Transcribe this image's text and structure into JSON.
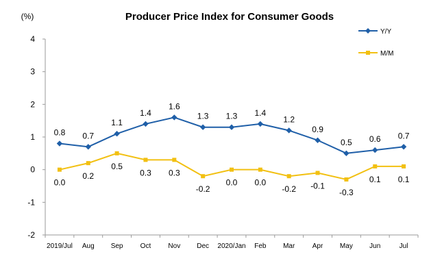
{
  "chart_data": {
    "type": "line",
    "title": "Producer Price Index for Consumer Goods",
    "unit_label": "(%)",
    "xlabel": "",
    "ylabel": "",
    "categories": [
      "2019/Jul",
      "Aug",
      "Sep",
      "Oct",
      "Nov",
      "Dec",
      "2020/Jan",
      "Feb",
      "Mar",
      "Apr",
      "May",
      "Jun",
      "Jul"
    ],
    "series": [
      {
        "name": "Y/Y",
        "color": "#1F5FA8",
        "marker": "diamond",
        "values": [
          0.8,
          0.7,
          1.1,
          1.4,
          1.6,
          1.3,
          1.3,
          1.4,
          1.2,
          0.9,
          0.5,
          0.6,
          0.7
        ]
      },
      {
        "name": "M/M",
        "color": "#F2C012",
        "marker": "square",
        "values": [
          0.0,
          0.2,
          0.5,
          0.3,
          0.3,
          -0.2,
          0.0,
          0.0,
          -0.2,
          -0.1,
          -0.3,
          0.1,
          0.1
        ]
      }
    ],
    "ylim": [
      -2,
      4
    ],
    "yticks": [
      -2,
      -1,
      0,
      1,
      2,
      3,
      4
    ],
    "grid": false,
    "legend_position": "top-right"
  }
}
